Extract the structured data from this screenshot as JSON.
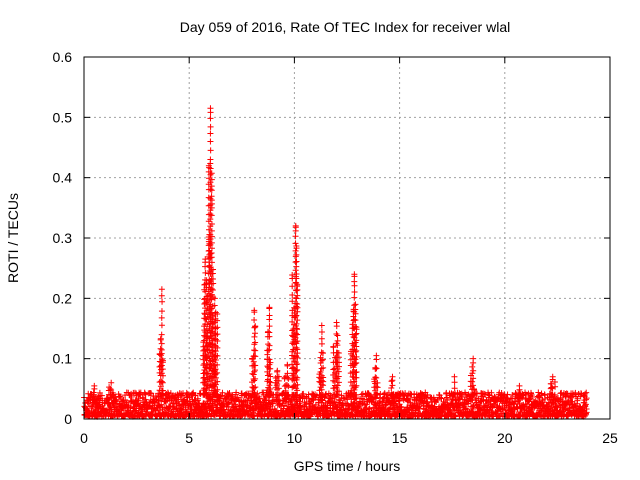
{
  "chart_data": {
    "type": "scatter",
    "title": "Day 059 of 2016, Rate Of TEC Index for receiver wlal",
    "xlabel": "GPS time / hours",
    "ylabel": "ROTI / TECUs",
    "xlim": [
      0,
      25
    ],
    "ylim": [
      0,
      0.6
    ],
    "xticks": [
      0,
      5,
      10,
      15,
      20,
      25
    ],
    "yticks": [
      0,
      0.1,
      0.2,
      0.3,
      0.4,
      0.5,
      0.6
    ],
    "xtick_labels": [
      "0",
      "5",
      "10",
      "15",
      "20",
      "25"
    ],
    "ytick_labels": [
      "0",
      "0.1",
      "0.2",
      "0.3",
      "0.4",
      "0.5",
      "0.6"
    ],
    "grid": true,
    "marker": "+",
    "color": "#ff0000",
    "data_extent_hours": [
      0,
      23.9
    ],
    "baseline_range": [
      0.0,
      0.04
    ],
    "peaks": [
      {
        "x": 0.5,
        "y": 0.055
      },
      {
        "x": 1.3,
        "y": 0.06
      },
      {
        "x": 3.7,
        "y": 0.215
      },
      {
        "x": 5.8,
        "y": 0.265
      },
      {
        "x": 6.05,
        "y": 0.515
      },
      {
        "x": 6.25,
        "y": 0.2
      },
      {
        "x": 8.1,
        "y": 0.18
      },
      {
        "x": 8.8,
        "y": 0.185
      },
      {
        "x": 9.2,
        "y": 0.08
      },
      {
        "x": 9.65,
        "y": 0.09
      },
      {
        "x": 10.05,
        "y": 0.32
      },
      {
        "x": 11.3,
        "y": 0.155
      },
      {
        "x": 12.0,
        "y": 0.16
      },
      {
        "x": 12.85,
        "y": 0.24
      },
      {
        "x": 13.9,
        "y": 0.105
      },
      {
        "x": 14.7,
        "y": 0.07
      },
      {
        "x": 17.6,
        "y": 0.07
      },
      {
        "x": 18.5,
        "y": 0.1
      },
      {
        "x": 20.7,
        "y": 0.055
      },
      {
        "x": 22.3,
        "y": 0.07
      }
    ]
  }
}
